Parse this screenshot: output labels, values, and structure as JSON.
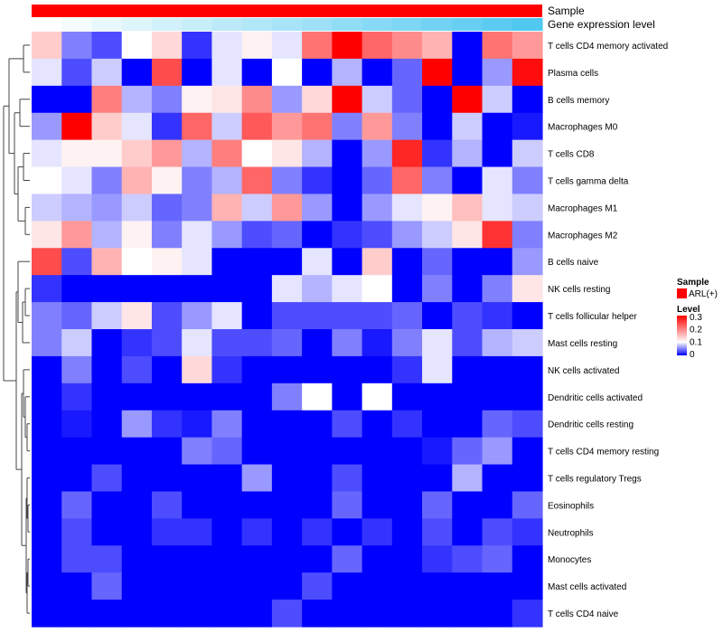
{
  "chart_data": {
    "type": "heatmap",
    "annotations": {
      "sample_label": "Sample",
      "expression_label": "Gene expression level"
    },
    "legend": {
      "sample_title": "Sample",
      "sample_entry": "ARL(+)",
      "sample_color": "#ff0000",
      "level_title": "Level",
      "level_ticks": [
        "0.3",
        "0.2",
        "0.1",
        "0"
      ],
      "color_low": "#0000ff",
      "color_mid": "#ffffff",
      "color_high": "#ff0000",
      "range": [
        0,
        0.3
      ]
    },
    "rows": [
      "T cells CD4 memory activated",
      "Plasma cells",
      "B cells memory",
      "Macrophages M0",
      "T cells CD8",
      "T cells gamma delta",
      "Macrophages M1",
      "Macrophages M2",
      "B cells naive",
      "NK cells resting",
      "T cells follicular helper",
      "Mast cells resting",
      "NK cells activated",
      "Dendritic cells activated",
      "Dendritic cells resting",
      "T cells CD4 memory resting",
      "T cells regulatory  Tregs",
      "Eosinophils",
      "Neutrophils",
      "Monocytes",
      "Mast cells activated",
      "T cells CD4 naive"
    ],
    "values": [
      [
        0.14,
        0.05,
        0.03,
        0.1,
        0.13,
        0.02,
        0.09,
        0.11,
        0.09,
        0.21,
        0.3,
        0.22,
        0.19,
        0.16,
        0.0,
        0.21,
        0.18
      ],
      [
        0.09,
        0.03,
        0.08,
        0.0,
        0.24,
        0.0,
        0.09,
        0.0,
        0.1,
        0.0,
        0.07,
        0.0,
        0.04,
        0.3,
        0.0,
        0.06,
        0.29
      ],
      [
        0.0,
        0.0,
        0.2,
        0.07,
        0.05,
        0.11,
        0.12,
        0.19,
        0.06,
        0.13,
        0.3,
        0.08,
        0.04,
        0.0,
        0.3,
        0.08,
        0.0
      ],
      [
        0.06,
        0.3,
        0.14,
        0.09,
        0.02,
        0.22,
        0.08,
        0.23,
        0.18,
        0.21,
        0.05,
        0.18,
        0.05,
        0.0,
        0.08,
        0.0,
        0.01
      ],
      [
        0.09,
        0.11,
        0.11,
        0.14,
        0.18,
        0.07,
        0.2,
        0.1,
        0.12,
        0.07,
        0.0,
        0.06,
        0.27,
        0.02,
        0.07,
        0.0,
        0.08
      ],
      [
        0.1,
        0.09,
        0.05,
        0.16,
        0.11,
        0.05,
        0.07,
        0.22,
        0.05,
        0.02,
        0.0,
        0.04,
        0.22,
        0.05,
        0.0,
        0.09,
        0.05
      ],
      [
        0.08,
        0.07,
        0.06,
        0.08,
        0.04,
        0.05,
        0.16,
        0.08,
        0.18,
        0.06,
        0.0,
        0.06,
        0.09,
        0.11,
        0.15,
        0.09,
        0.08
      ],
      [
        0.12,
        0.18,
        0.07,
        0.11,
        0.05,
        0.09,
        0.06,
        0.03,
        0.04,
        0.0,
        0.02,
        0.03,
        0.06,
        0.08,
        0.12,
        0.26,
        0.05
      ],
      [
        0.24,
        0.03,
        0.16,
        0.1,
        0.11,
        0.09,
        0.0,
        0.0,
        0.0,
        0.09,
        0.0,
        0.14,
        0.0,
        0.04,
        0.0,
        0.0,
        0.06
      ],
      [
        0.02,
        0.0,
        0.0,
        0.0,
        0.0,
        0.0,
        0.0,
        0.0,
        0.09,
        0.07,
        0.09,
        0.1,
        0.0,
        0.05,
        0.0,
        0.05,
        0.12
      ],
      [
        0.05,
        0.04,
        0.08,
        0.12,
        0.03,
        0.06,
        0.09,
        0.0,
        0.03,
        0.03,
        0.03,
        0.03,
        0.04,
        0.0,
        0.03,
        0.02,
        0.0
      ],
      [
        0.05,
        0.08,
        0.0,
        0.02,
        0.03,
        0.09,
        0.03,
        0.03,
        0.04,
        0.0,
        0.05,
        0.01,
        0.05,
        0.09,
        0.03,
        0.07,
        0.08
      ],
      [
        0.0,
        0.05,
        0.0,
        0.03,
        0.0,
        0.13,
        0.02,
        0.0,
        0.0,
        0.0,
        0.0,
        0.0,
        0.02,
        0.09,
        0.0,
        0.0,
        0.0
      ],
      [
        0.0,
        0.02,
        0.0,
        0.0,
        0.0,
        0.0,
        0.0,
        0.0,
        0.05,
        0.1,
        0.0,
        0.1,
        0.0,
        0.0,
        0.0,
        0.0,
        0.0
      ],
      [
        0.0,
        0.01,
        0.0,
        0.06,
        0.02,
        0.01,
        0.05,
        0.0,
        0.0,
        0.0,
        0.03,
        0.0,
        0.02,
        0.0,
        0.0,
        0.04,
        0.03
      ],
      [
        0.0,
        0.0,
        0.0,
        0.0,
        0.0,
        0.05,
        0.04,
        0.0,
        0.0,
        0.0,
        0.0,
        0.0,
        0.0,
        0.01,
        0.04,
        0.06,
        0.0
      ],
      [
        0.0,
        0.0,
        0.03,
        0.0,
        0.0,
        0.0,
        0.0,
        0.06,
        0.0,
        0.0,
        0.03,
        0.0,
        0.0,
        0.0,
        0.07,
        0.0,
        0.0
      ],
      [
        0.0,
        0.04,
        0.0,
        0.0,
        0.03,
        0.0,
        0.0,
        0.0,
        0.0,
        0.0,
        0.04,
        0.0,
        0.0,
        0.04,
        0.0,
        0.0,
        0.04
      ],
      [
        0.0,
        0.03,
        0.0,
        0.0,
        0.02,
        0.02,
        0.0,
        0.02,
        0.0,
        0.02,
        0.0,
        0.02,
        0.0,
        0.03,
        0.0,
        0.03,
        0.02
      ],
      [
        0.0,
        0.03,
        0.03,
        0.0,
        0.0,
        0.0,
        0.0,
        0.0,
        0.0,
        0.0,
        0.04,
        0.0,
        0.0,
        0.02,
        0.03,
        0.04,
        0.0
      ],
      [
        0.0,
        0.0,
        0.04,
        0.0,
        0.0,
        0.0,
        0.0,
        0.0,
        0.0,
        0.03,
        0.0,
        0.0,
        0.0,
        0.0,
        0.0,
        0.0,
        0.0
      ],
      [
        0.0,
        0.0,
        0.0,
        0.0,
        0.0,
        0.0,
        0.0,
        0.0,
        0.03,
        0.0,
        0.0,
        0.0,
        0.0,
        0.0,
        0.0,
        0.0,
        0.02
      ]
    ],
    "expression_gradient": {
      "from": "#ffffff",
      "to": "#50c8f0"
    }
  }
}
